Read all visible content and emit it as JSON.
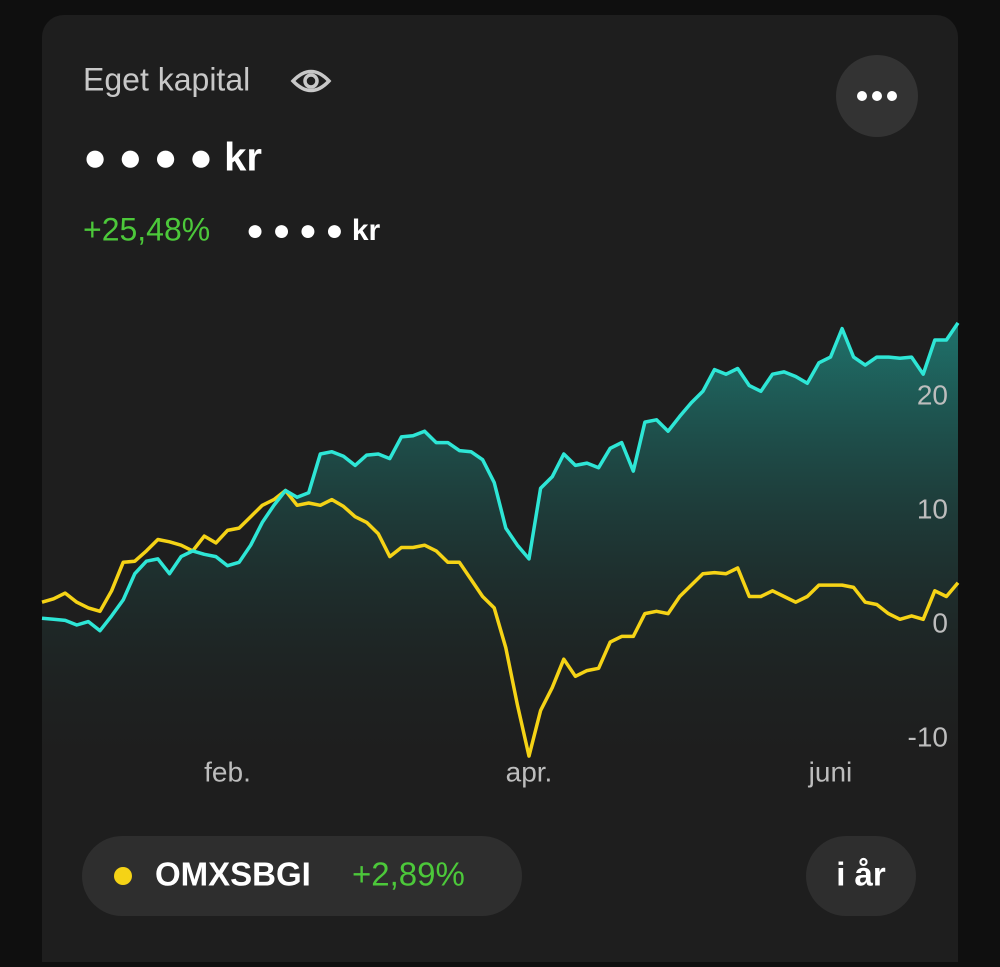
{
  "header": {
    "title": "Eget kapital",
    "value": "● ● ● ● kr",
    "change": "+25,48%",
    "change_value": "● ● ● ● kr"
  },
  "chart_data": {
    "type": "line",
    "categories": [
      null,
      null,
      null,
      null,
      null,
      null,
      null,
      null,
      null,
      null,
      null,
      null,
      null,
      null,
      null,
      null,
      "feb.",
      null,
      null,
      null,
      null,
      null,
      null,
      null,
      null,
      null,
      null,
      null,
      null,
      null,
      null,
      null,
      null,
      null,
      null,
      null,
      null,
      null,
      null,
      null,
      null,
      null,
      "apr.",
      null,
      null,
      null,
      null,
      null,
      null,
      null,
      null,
      null,
      null,
      null,
      null,
      null,
      null,
      null,
      null,
      null,
      null,
      null,
      null,
      null,
      null,
      null,
      null,
      null,
      "juni",
      null,
      null,
      null,
      null,
      null,
      null,
      null,
      null,
      null,
      null,
      null
    ],
    "series": [
      {
        "color": "#2ee6d6",
        "area": true,
        "values": [
          0.6,
          0.5,
          0.4,
          0,
          0.3,
          -0.5,
          0.8,
          2.2,
          4.5,
          5.6,
          5.8,
          4.5,
          6,
          6.5,
          6.2,
          6,
          5.2,
          5.5,
          7,
          9,
          10.5,
          11.8,
          11.2,
          11.6,
          15,
          15.2,
          14.8,
          14,
          14.9,
          15,
          14.6,
          16.5,
          16.6,
          17,
          16,
          16,
          15.3,
          15.2,
          14.5,
          12.5,
          8.5,
          7,
          5.8,
          12,
          13,
          15,
          14,
          14.2,
          13.8,
          15.5,
          16,
          13.5,
          17.8,
          18,
          17,
          18.3,
          19.5,
          20.5,
          22.4,
          22,
          22.5,
          21,
          20.5,
          22,
          22.2,
          21.8,
          21.2,
          23,
          23.5,
          26,
          23.5,
          22.8,
          23.5,
          23.5,
          23.4,
          23.5,
          22,
          25,
          25,
          26.5
        ]
      },
      {
        "name": "OMXSBGI",
        "change": "+2,89%",
        "color": "#f5d316",
        "values": [
          2,
          2.3,
          2.8,
          2,
          1.5,
          1.2,
          3,
          5.5,
          5.6,
          6.5,
          7.5,
          7.3,
          7,
          6.5,
          7.8,
          7.2,
          8.3,
          8.5,
          9.5,
          10.5,
          11,
          11.8,
          10.5,
          10.7,
          10.5,
          11,
          10.4,
          9.5,
          9,
          8,
          6,
          6.8,
          6.8,
          7,
          6.5,
          5.5,
          5.5,
          4,
          2.5,
          1.5,
          -2,
          -7,
          -11.5,
          -7.5,
          -5.5,
          -3,
          -4.5,
          -4,
          -3.8,
          -1.5,
          -1,
          -1,
          1,
          1.2,
          1,
          2.5,
          3.5,
          4.5,
          4.6,
          4.5,
          5,
          2.5,
          2.5,
          3,
          2.5,
          2,
          2.5,
          3.5,
          3.5,
          3.5,
          3.3,
          2,
          1.8,
          1,
          0.5,
          0.8,
          0.5,
          3,
          2.5,
          3.7
        ]
      }
    ],
    "ylim": [
      -12,
      27
    ],
    "yticks": [
      -10,
      0,
      10,
      20
    ],
    "grid": false
  },
  "controls": {
    "period": "i år"
  }
}
